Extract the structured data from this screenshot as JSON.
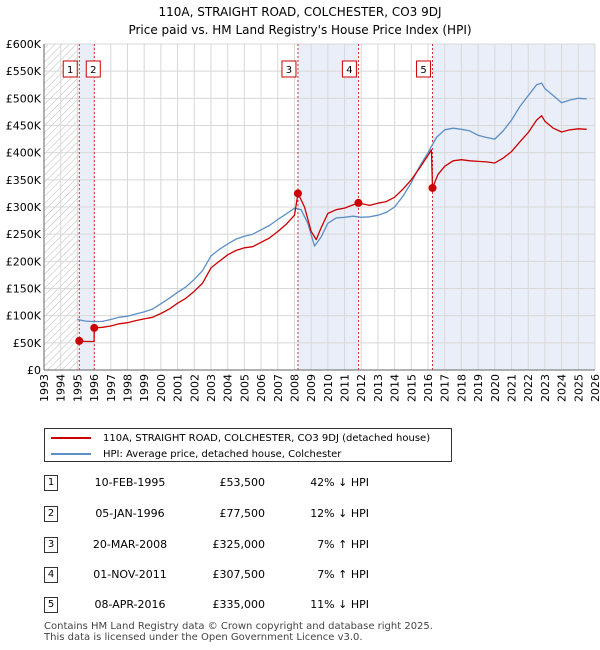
{
  "chart_data": {
    "type": "line",
    "title": "110A, STRAIGHT ROAD, COLCHESTER, CO3 9DJ",
    "subtitle": "Price paid vs. HM Land Registry's House Price Index (HPI)",
    "xlim": [
      1993,
      2026
    ],
    "ylim": [
      0,
      600000
    ],
    "x_ticks": [
      1993,
      1994,
      1995,
      1996,
      1997,
      1998,
      1999,
      2000,
      2001,
      2002,
      2003,
      2004,
      2005,
      2006,
      2007,
      2008,
      2009,
      2010,
      2011,
      2012,
      2013,
      2014,
      2015,
      2016,
      2017,
      2018,
      2019,
      2020,
      2021,
      2022,
      2023,
      2024,
      2025,
      2026
    ],
    "y_ticks": [
      {
        "value": 0,
        "label": "£0"
      },
      {
        "value": 50000,
        "label": "£50K"
      },
      {
        "value": 100000,
        "label": "£100K"
      },
      {
        "value": 150000,
        "label": "£150K"
      },
      {
        "value": 200000,
        "label": "£200K"
      },
      {
        "value": 250000,
        "label": "£250K"
      },
      {
        "value": 300000,
        "label": "£300K"
      },
      {
        "value": 350000,
        "label": "£350K"
      },
      {
        "value": 400000,
        "label": "£400K"
      },
      {
        "value": 450000,
        "label": "£450K"
      },
      {
        "value": 500000,
        "label": "£500K"
      },
      {
        "value": 550000,
        "label": "£550K"
      },
      {
        "value": 600000,
        "label": "£600K"
      }
    ],
    "grid": true,
    "hatched_range": [
      1993,
      1995.11
    ],
    "shaded_ranges": [
      [
        1995.11,
        1996.01
      ],
      [
        2008.21,
        2011.83
      ],
      [
        2016.27,
        2026
      ]
    ],
    "series": [
      {
        "name": "110A, STRAIGHT ROAD, COLCHESTER, CO3 9DJ (detached house)",
        "color": "#cc0000",
        "points": [
          [
            1995.11,
            53500
          ],
          [
            1995.5,
            52500
          ],
          [
            1996.0,
            52500
          ],
          [
            1996.01,
            77500
          ],
          [
            1996.5,
            78500
          ],
          [
            1997.0,
            81000
          ],
          [
            1997.5,
            85000
          ],
          [
            1998.0,
            87000
          ],
          [
            1998.5,
            91000
          ],
          [
            1999.0,
            94000
          ],
          [
            1999.5,
            97000
          ],
          [
            2000.0,
            104000
          ],
          [
            2000.5,
            112000
          ],
          [
            2001.0,
            123000
          ],
          [
            2001.5,
            132000
          ],
          [
            2002.0,
            145000
          ],
          [
            2002.5,
            160000
          ],
          [
            2003.0,
            188000
          ],
          [
            2003.5,
            200000
          ],
          [
            2004.0,
            212000
          ],
          [
            2004.5,
            220000
          ],
          [
            2005.0,
            225000
          ],
          [
            2005.5,
            227000
          ],
          [
            2006.0,
            235000
          ],
          [
            2006.5,
            243000
          ],
          [
            2007.0,
            255000
          ],
          [
            2007.5,
            268000
          ],
          [
            2008.0,
            285000
          ],
          [
            2008.21,
            325000
          ],
          [
            2008.6,
            300000
          ],
          [
            2009.0,
            255000
          ],
          [
            2009.3,
            240000
          ],
          [
            2009.6,
            262000
          ],
          [
            2010.0,
            288000
          ],
          [
            2010.5,
            295000
          ],
          [
            2011.0,
            298000
          ],
          [
            2011.83,
            307500
          ],
          [
            2012.5,
            303000
          ],
          [
            2013.0,
            307000
          ],
          [
            2013.5,
            310000
          ],
          [
            2014.0,
            318000
          ],
          [
            2014.5,
            333000
          ],
          [
            2015.0,
            350000
          ],
          [
            2015.5,
            372000
          ],
          [
            2016.0,
            395000
          ],
          [
            2016.2,
            405000
          ],
          [
            2016.27,
            335000
          ],
          [
            2016.6,
            360000
          ],
          [
            2017.0,
            375000
          ],
          [
            2017.5,
            385000
          ],
          [
            2018.0,
            387000
          ],
          [
            2018.5,
            385000
          ],
          [
            2019.0,
            384000
          ],
          [
            2019.5,
            383000
          ],
          [
            2020.0,
            381000
          ],
          [
            2020.5,
            390000
          ],
          [
            2021.0,
            402000
          ],
          [
            2021.5,
            420000
          ],
          [
            2022.0,
            437000
          ],
          [
            2022.5,
            460000
          ],
          [
            2022.8,
            468000
          ],
          [
            2023.0,
            458000
          ],
          [
            2023.5,
            445000
          ],
          [
            2024.0,
            438000
          ],
          [
            2024.5,
            442000
          ],
          [
            2025.0,
            444000
          ],
          [
            2025.5,
            443000
          ]
        ]
      },
      {
        "name": "HPI: Average price, detached house, Colchester",
        "color": "#5b8fc7",
        "points": [
          [
            1995.0,
            93000
          ],
          [
            1995.5,
            90000
          ],
          [
            1996.0,
            89000
          ],
          [
            1996.5,
            89500
          ],
          [
            1997.0,
            93000
          ],
          [
            1997.5,
            97000
          ],
          [
            1998.0,
            99000
          ],
          [
            1998.5,
            103000
          ],
          [
            1999.0,
            107000
          ],
          [
            1999.5,
            112000
          ],
          [
            2000.0,
            122000
          ],
          [
            2000.5,
            132000
          ],
          [
            2001.0,
            143000
          ],
          [
            2001.5,
            153000
          ],
          [
            2002.0,
            167000
          ],
          [
            2002.5,
            183000
          ],
          [
            2003.0,
            210000
          ],
          [
            2003.5,
            222000
          ],
          [
            2004.0,
            232000
          ],
          [
            2004.5,
            241000
          ],
          [
            2005.0,
            246000
          ],
          [
            2005.5,
            250000
          ],
          [
            2006.0,
            258000
          ],
          [
            2006.5,
            266000
          ],
          [
            2007.0,
            277000
          ],
          [
            2007.5,
            287000
          ],
          [
            2008.0,
            298000
          ],
          [
            2008.4,
            295000
          ],
          [
            2008.8,
            270000
          ],
          [
            2009.2,
            228000
          ],
          [
            2009.6,
            245000
          ],
          [
            2010.0,
            270000
          ],
          [
            2010.5,
            280000
          ],
          [
            2011.0,
            281000
          ],
          [
            2011.5,
            283000
          ],
          [
            2012.0,
            281000
          ],
          [
            2012.5,
            282000
          ],
          [
            2013.0,
            285000
          ],
          [
            2013.5,
            290000
          ],
          [
            2014.0,
            300000
          ],
          [
            2014.5,
            320000
          ],
          [
            2015.0,
            345000
          ],
          [
            2015.5,
            375000
          ],
          [
            2016.0,
            400000
          ],
          [
            2016.5,
            428000
          ],
          [
            2017.0,
            442000
          ],
          [
            2017.5,
            445000
          ],
          [
            2018.0,
            443000
          ],
          [
            2018.5,
            440000
          ],
          [
            2019.0,
            432000
          ],
          [
            2019.5,
            428000
          ],
          [
            2020.0,
            425000
          ],
          [
            2020.5,
            440000
          ],
          [
            2021.0,
            460000
          ],
          [
            2021.5,
            485000
          ],
          [
            2022.0,
            505000
          ],
          [
            2022.5,
            525000
          ],
          [
            2022.8,
            528000
          ],
          [
            2023.0,
            518000
          ],
          [
            2023.5,
            505000
          ],
          [
            2024.0,
            492000
          ],
          [
            2024.5,
            497000
          ],
          [
            2025.0,
            500000
          ],
          [
            2025.5,
            499000
          ]
        ]
      }
    ],
    "markers": [
      {
        "id": "1",
        "x": 1995.11,
        "y": 53500
      },
      {
        "id": "2",
        "x": 1996.01,
        "y": 77500
      },
      {
        "id": "3",
        "x": 2008.21,
        "y": 325000
      },
      {
        "id": "4",
        "x": 2011.83,
        "y": 307500
      },
      {
        "id": "5",
        "x": 2016.27,
        "y": 335000
      }
    ]
  },
  "legend": {
    "property_label": "110A, STRAIGHT ROAD, COLCHESTER, CO3 9DJ (detached house)",
    "hpi_label": "HPI: Average price, detached house, Colchester",
    "property_color": "#cc0000",
    "hpi_color": "#5b8fc7"
  },
  "transactions": [
    {
      "num": "1",
      "date": "10-FEB-1995",
      "price": "£53,500",
      "hpi": "42% ↓ HPI"
    },
    {
      "num": "2",
      "date": "05-JAN-1996",
      "price": "£77,500",
      "hpi": "12% ↓ HPI"
    },
    {
      "num": "3",
      "date": "20-MAR-2008",
      "price": "£325,000",
      "hpi": "7% ↑ HPI"
    },
    {
      "num": "4",
      "date": "01-NOV-2011",
      "price": "£307,500",
      "hpi": "7% ↑ HPI"
    },
    {
      "num": "5",
      "date": "08-APR-2016",
      "price": "£335,000",
      "hpi": "11% ↓ HPI"
    }
  ],
  "footer": {
    "line1": "Contains HM Land Registry data © Crown copyright and database right 2025.",
    "line2": "This data is licensed under the Open Government Licence v3.0."
  }
}
